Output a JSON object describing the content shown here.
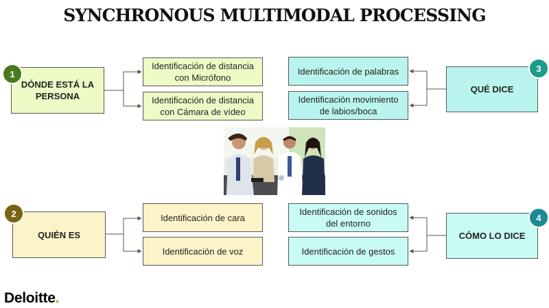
{
  "title": "SYNCHRONOUS MULTIMODAL PROCESSING",
  "sections": [
    {
      "num": "1",
      "label": "DÓNDE ESTÁ LA PERSONA",
      "items": [
        "Identificación de distancia con Micrófono",
        "Identificación de distancia con Cámara de vídeo"
      ],
      "color": "#ecfac6",
      "badge_color": "#4a7a1e"
    },
    {
      "num": "2",
      "label": "QUIÉN ES",
      "items": [
        "Identificación de cara",
        "Identificación de voz"
      ],
      "color": "#fdf3c8",
      "badge_color": "#7a6414"
    },
    {
      "num": "3",
      "label": "QUÉ DICE",
      "items": [
        "Identificación de palabras",
        "Identificación movimiento de labios/boca"
      ],
      "color": "#b9f5ee",
      "badge_color": "#1d9a8a"
    },
    {
      "num": "4",
      "label": "CÓMO LO DICE",
      "items": [
        "Identificación de sonidos del entorno",
        "Identificación de gestos"
      ],
      "color": "#c8fbf4",
      "badge_color": "#1b8a92"
    }
  ],
  "logo": {
    "text": "Deloitte",
    "dot": "."
  }
}
